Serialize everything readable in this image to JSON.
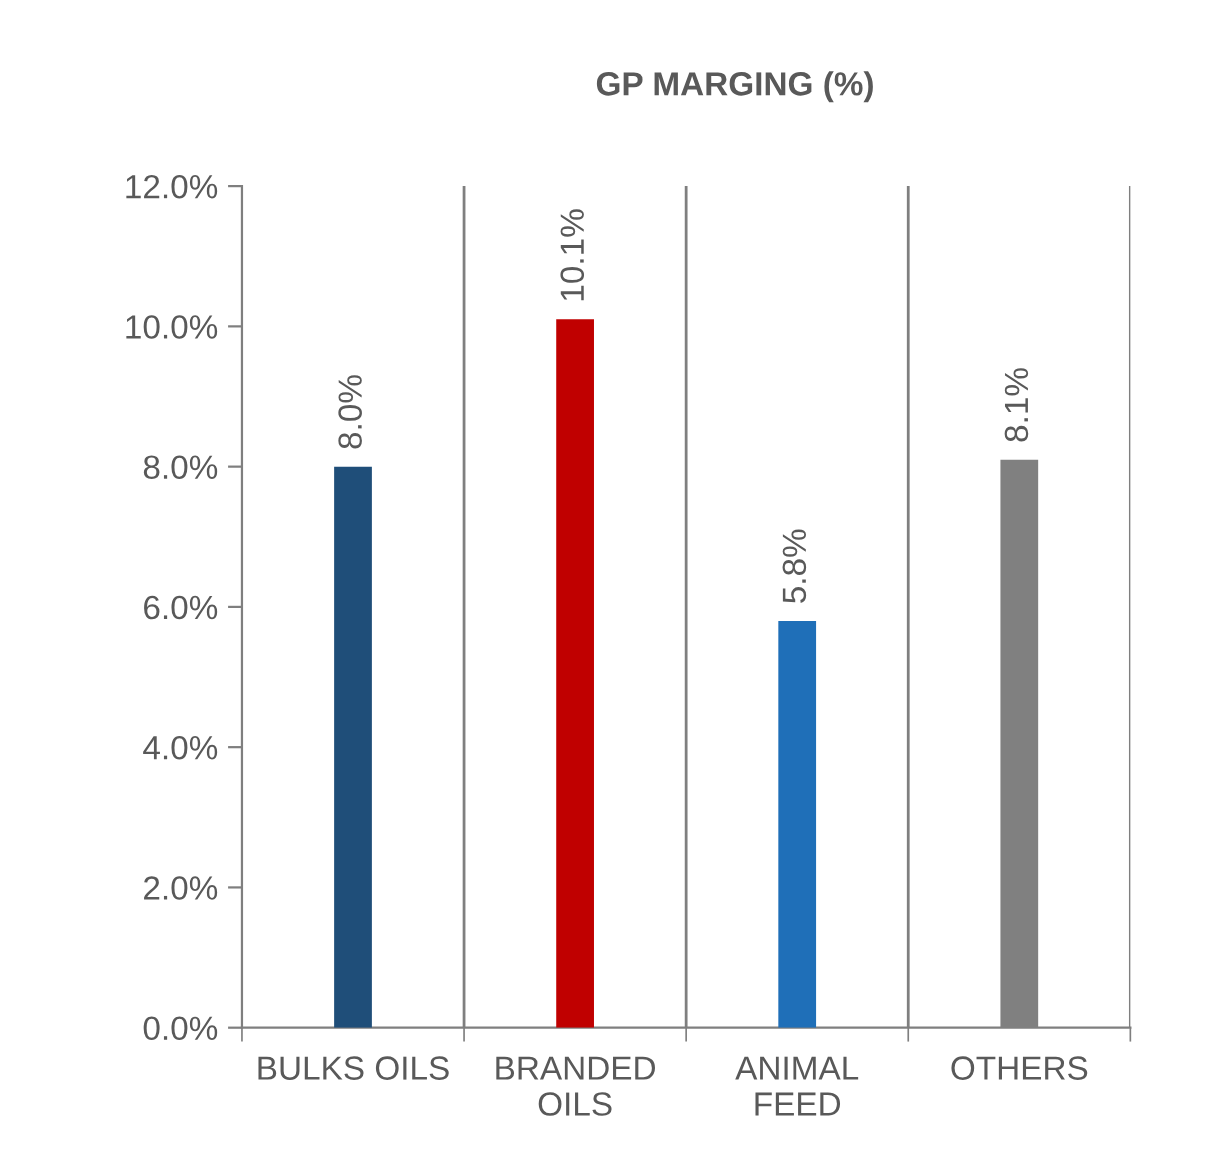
{
  "chart_data": {
    "type": "bar",
    "title": "GP MARGING (%)",
    "categories": [
      "BULKS OILS",
      "BRANDED OILS",
      "ANIMAL FEED",
      "OTHERS"
    ],
    "values": [
      8.0,
      10.1,
      5.8,
      8.1
    ],
    "colors": [
      "#1f4e79",
      "#c00000",
      "#1f6fb8",
      "#808080"
    ],
    "value_labels": [
      "8.0%",
      "10.1%",
      "5.8%",
      "8.1%"
    ],
    "ylim": [
      0,
      12
    ],
    "yticks": [
      {
        "value": 0,
        "label": "0.0%"
      },
      {
        "value": 2,
        "label": "2.0%"
      },
      {
        "value": 4,
        "label": "4.0%"
      },
      {
        "value": 6,
        "label": "6.0%"
      },
      {
        "value": 8,
        "label": "8.0%"
      },
      {
        "value": 10,
        "label": "10.0%"
      },
      {
        "value": 12,
        "label": "12.0%"
      }
    ],
    "grid": "x",
    "legend": false
  }
}
